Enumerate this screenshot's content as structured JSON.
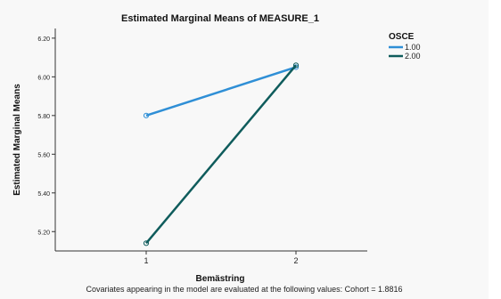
{
  "chart_data": {
    "type": "line",
    "title": "Estimated Marginal Means of MEASURE_1",
    "xlabel": "Bemästring",
    "ylabel": "Estimated Marginal Means",
    "categories": [
      "1",
      "2"
    ],
    "ylim": [
      5.1,
      6.25
    ],
    "yticks": [
      "5.20",
      "5.40",
      "5.60",
      "5.80",
      "6.00",
      "6.20"
    ],
    "legend": {
      "title": "OSCE",
      "position": "top-right"
    },
    "series": [
      {
        "name": "1.00",
        "values": [
          5.8,
          6.05
        ],
        "color": "#2f8fd6"
      },
      {
        "name": "2.00",
        "values": [
          5.14,
          6.06
        ],
        "color": "#0f5c5c"
      }
    ],
    "grid": false,
    "footnote": "Covariates appearing in the model are evaluated at the following values: Cohort = 1.8816"
  }
}
